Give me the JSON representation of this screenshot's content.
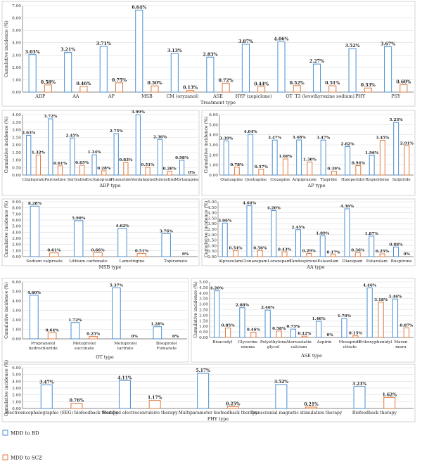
{
  "colors": {
    "bd": "#4a8fd4",
    "scz": "#e07a3e",
    "grid": "#dcdcdc",
    "axis": "#666666"
  },
  "legend": [
    {
      "name": "MDD to BD",
      "color": "#4a8fd4"
    },
    {
      "name": "MDD to SCZ",
      "color": "#e07a3e"
    }
  ],
  "chart_data": [
    {
      "type": "bar",
      "xlabel": "Treatment type",
      "ylabel": "Cumulative incidence (%)",
      "ylim": [
        0,
        7
      ],
      "yticks": [
        "0.00",
        "1.00",
        "2.00",
        "3.00",
        "4.00",
        "5.00",
        "6.00",
        "7.00"
      ],
      "grid": true,
      "categories": [
        "ADP",
        "AA",
        "AP",
        "MSB",
        "CM (oryzanol)",
        "ASE",
        "HYP (zopiclone)",
        "OT",
        "T3 (levothyroxine sodium)",
        "PHY",
        "PSY"
      ],
      "series": [
        {
          "name": "MDD to BD",
          "values": [
            3.03,
            3.21,
            3.71,
            6.64,
            3.13,
            2.83,
            3.87,
            4.06,
            2.27,
            3.52,
            3.67
          ],
          "labels": [
            "3.03%",
            "3.21%",
            "3.71%",
            "6.64%",
            "3.13%",
            "2.83%",
            "3.87%",
            "4.06%",
            "2.27%",
            "3.52%",
            "3.67%"
          ]
        },
        {
          "name": "MDD to SCZ",
          "values": [
            0.58,
            0.46,
            0.75,
            0.5,
            0.13,
            0.72,
            0.44,
            0.52,
            0.51,
            0.33,
            0.6
          ],
          "labels": [
            "0.58%",
            "0.46%",
            "0.75%",
            "0.50%",
            "0.13%",
            "0.72%",
            "0.44%",
            "0.52%",
            "0.51%",
            "0.33%",
            "0.60%"
          ]
        }
      ]
    },
    {
      "type": "bar",
      "xlabel": "ADP type",
      "ylabel": "Cumulative incidence (%)",
      "ylim": [
        0,
        4
      ],
      "yticks": [
        "0.00",
        "0.50",
        "1.00",
        "1.50",
        "2.00",
        "2.50",
        "3.00",
        "3.50",
        "4.00"
      ],
      "grid": true,
      "categories": [
        "Citalopram",
        "Paroxetine",
        "Sertraline",
        "Escitalopram",
        "Fluoxetine",
        "Venlafaxine",
        "Duloxetine",
        "Mirtazapine"
      ],
      "series": [
        {
          "name": "MDD to BD",
          "values": [
            2.63,
            3.72,
            2.45,
            1.34,
            2.75,
            3.99,
            2.36,
            0.98
          ],
          "labels": [
            "2.63%",
            "3.72%",
            "2.45%",
            "1.34%",
            "2.75%",
            "3.99%",
            "2.36%",
            "0.98%"
          ]
        },
        {
          "name": "MDD to SCZ",
          "values": [
            1.32,
            0.61,
            0.65,
            0.28,
            0.83,
            0.51,
            0.26,
            0
          ],
          "labels": [
            "1.32%",
            "0.61%",
            "0.65%",
            "0.28%",
            "0.83%",
            "0.51%",
            "0.26%",
            "0%"
          ]
        }
      ]
    },
    {
      "type": "bar",
      "xlabel": "AP type",
      "ylabel": "Cumulative incidence (%)",
      "ylim": [
        0,
        6
      ],
      "yticks": [
        "0.00",
        "1.00",
        "2.00",
        "3.00",
        "4.00",
        "5.00",
        "6.00"
      ],
      "grid": true,
      "categories": [
        "Olanzapine",
        "Quetiapine",
        "Clozapine",
        "Aripiprazole",
        "Tiapride",
        "Haloperidol",
        "Risperidone",
        "Sulpiride"
      ],
      "series": [
        {
          "name": "MDD to BD",
          "values": [
            3.39,
            4.04,
            3.47,
            3.48,
            3.47,
            2.82,
            1.96,
            5.23
          ],
          "labels": [
            "3.39%",
            "4.04%",
            "3.47%",
            "3.48%",
            "3.47%",
            "2.82%",
            "1.96%",
            "5.23%"
          ]
        },
        {
          "name": "MDD to SCZ",
          "values": [
            0.78,
            0.57,
            1.6,
            1.3,
            0.39,
            0.94,
            3.45,
            2.91
          ],
          "labels": [
            "0.78%",
            "0.57%",
            "1.60%",
            "1.30%",
            "0.39%",
            "0.94%",
            "3.45%",
            "2.91%"
          ]
        }
      ]
    },
    {
      "type": "bar",
      "xlabel": "MSB type",
      "ylabel": "Cumulative incidence (%)",
      "ylim": [
        0,
        9
      ],
      "yticks": [
        "0.00",
        "1.00",
        "2.00",
        "3.00",
        "4.00",
        "5.00",
        "6.00",
        "7.00",
        "8.00",
        "9.00"
      ],
      "grid": true,
      "categories": [
        "Sodium valproate",
        "Lithium carbonate",
        "Lamotrigine",
        "Topiramate"
      ],
      "series": [
        {
          "name": "MDD to BD",
          "values": [
            8.28,
            5.9,
            4.62,
            3.76
          ],
          "labels": [
            "8.28%",
            "5.90%",
            "4.62%",
            "3.76%"
          ]
        },
        {
          "name": "MDD to SCZ",
          "values": [
            0.61,
            0.66,
            0.51,
            0
          ],
          "labels": [
            "0.61%",
            "0.66%",
            "0.51%",
            "0%"
          ]
        }
      ]
    },
    {
      "type": "bar",
      "xlabel": "AA type",
      "ylabel": "Cumulative incidence (%)",
      "ylim": [
        0,
        5
      ],
      "yticks": [
        "0.00",
        "0.50",
        "1.00",
        "1.50",
        "2.00",
        "2.50",
        "3.00",
        "3.50",
        "4.00",
        "4.50",
        "5.00"
      ],
      "grid": true,
      "categories": [
        "Alprazolam",
        "Clonazepam",
        "Lorazepam",
        "Tandospirone",
        "Estazolam",
        "Diazepam",
        "Estazolam",
        "Buspirone"
      ],
      "series": [
        {
          "name": "MDD to BD",
          "values": [
            3.06,
            4.64,
            4.2,
            2.45,
            1.89,
            4.36,
            1.87,
            0.88
          ],
          "labels": [
            "3.06%",
            "4.64%",
            "4.20%",
            "2.45%",
            "1.89%",
            "4.36%",
            "1.87%",
            "0.88%"
          ]
        },
        {
          "name": "MDD to SCZ",
          "values": [
            0.54,
            0.56,
            0.43,
            0.29,
            0.17,
            0.36,
            0.25,
            0
          ],
          "labels": [
            "0.54%",
            "0.56%",
            "0.43%",
            "0.29%",
            "0.17%",
            "0.36%",
            "0.25%",
            "0%"
          ]
        }
      ]
    },
    {
      "type": "bar",
      "xlabel": "OT type",
      "ylabel": "Cumulative incidence (%)",
      "ylim": [
        0,
        6
      ],
      "yticks": [
        "0.00",
        "1.00",
        "2.00",
        "3.00",
        "4.00",
        "5.00",
        "6.00"
      ],
      "grid": true,
      "categories": [
        "Propranolol hydrochloride",
        "Metoprolol succinate",
        "Metoprolol tartrate",
        "Bisoprolol Fumarate"
      ],
      "series": [
        {
          "name": "MDD to BD",
          "values": [
            4.6,
            1.72,
            5.37,
            1.28
          ],
          "labels": [
            "4.60%",
            "1.72%",
            "5.37%",
            "1.28%"
          ]
        },
        {
          "name": "MDD to SCZ",
          "values": [
            0.64,
            0.25,
            0,
            0
          ],
          "labels": [
            "0.64%",
            "0.25%",
            "0%",
            "0%"
          ]
        }
      ]
    },
    {
      "type": "bar",
      "xlabel": "ASE type",
      "ylabel": "Cumulative incidence (%)",
      "ylim": [
        0,
        5
      ],
      "yticks": [
        "0.00",
        "0.50",
        "1.00",
        "1.50",
        "2.00",
        "2.50",
        "3.00",
        "3.50",
        "4.00",
        "4.50",
        "5.00"
      ],
      "grid": true,
      "categories": [
        "Bisacodyl",
        "Glycerine enema",
        "Polyethylene glycol",
        "Atorvastatin calcium",
        "Aspirin",
        "Mosapride citrate",
        "Trihexyphenidyl",
        "Maren maru"
      ],
      "series": [
        {
          "name": "MDD to BD",
          "values": [
            4.2,
            2.68,
            2.46,
            0.75,
            1.46,
            1.7,
            4.46,
            3.46
          ],
          "labels": [
            "4.20%",
            "2.68%",
            "2.46%",
            "0.75%",
            "1.46%",
            "1.70%",
            "4.46%",
            "3.46%"
          ]
        },
        {
          "name": "MDD to SCZ",
          "values": [
            0.85,
            0.46,
            0.58,
            0.12,
            0,
            0.15,
            3.18,
            0.87
          ],
          "labels": [
            "0.85%",
            "0.46%",
            "0.58%",
            "0.12%",
            "0%",
            "0.15%",
            "3.18%",
            "0.87%"
          ]
        }
      ]
    },
    {
      "type": "bar",
      "xlabel": "PHY type",
      "ylabel": "Cumulative incidence (%)",
      "ylim": [
        0,
        6
      ],
      "yticks": [
        "0.00",
        "1.00",
        "2.00",
        "3.00",
        "4.00",
        "5.00",
        "6.00"
      ],
      "grid": true,
      "categories": [
        "Electroencephalographic (EEG) biofeedback therapy",
        "Modified electroconvulsive therapy",
        "Multiparameter biofeedback therapy",
        "Transcranial magnetic stimulation therapy",
        "Biofeedback therapy"
      ],
      "series": [
        {
          "name": "MDD to BD",
          "values": [
            3.47,
            4.11,
            5.17,
            3.52,
            3.23
          ],
          "labels": [
            "3.47%",
            "4.11%",
            "5.17%",
            "3.52%",
            "3.23%"
          ]
        },
        {
          "name": "MDD to SCZ",
          "values": [
            0.76,
            1.17,
            0.25,
            0.21,
            1.62
          ],
          "labels": [
            "0.76%",
            "1.17%",
            "0.25%",
            "0.21%",
            "1.62%"
          ]
        }
      ]
    }
  ]
}
